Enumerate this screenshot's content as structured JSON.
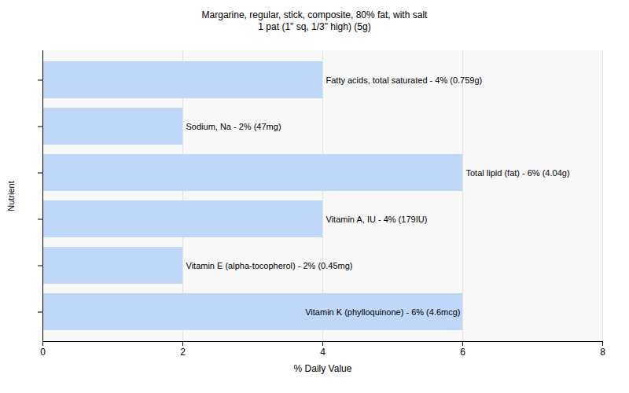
{
  "chart_data": {
    "type": "bar",
    "title": "Margarine, regular, stick, composite, 80% fat, with salt",
    "subtitle": "1 pat (1\" sq, 1/3\" high) (5g)",
    "x_label": "% Daily Value",
    "y_label": "Nutrient",
    "orientation": "horizontal",
    "categories": [
      "Fatty acids, total saturated - 4% (0.759g)",
      "Sodium, Na - 2% (47mg)",
      "Total lipid (fat) - 6% (4.04g)",
      "Vitamin A, IU - 4% (179IU)",
      "Vitamin E (alpha-tocopherol) - 2% (0.45mg)",
      "Vitamin K (phylloquinone) - 6% (4.6mcg)"
    ],
    "values": [
      4,
      2,
      6,
      4,
      2,
      6
    ],
    "color": "#bfd8f9",
    "xlim": [
      0,
      8
    ],
    "xticks": [
      0,
      2,
      4,
      6,
      8
    ],
    "grid": true,
    "tick_labels": "x"
  }
}
